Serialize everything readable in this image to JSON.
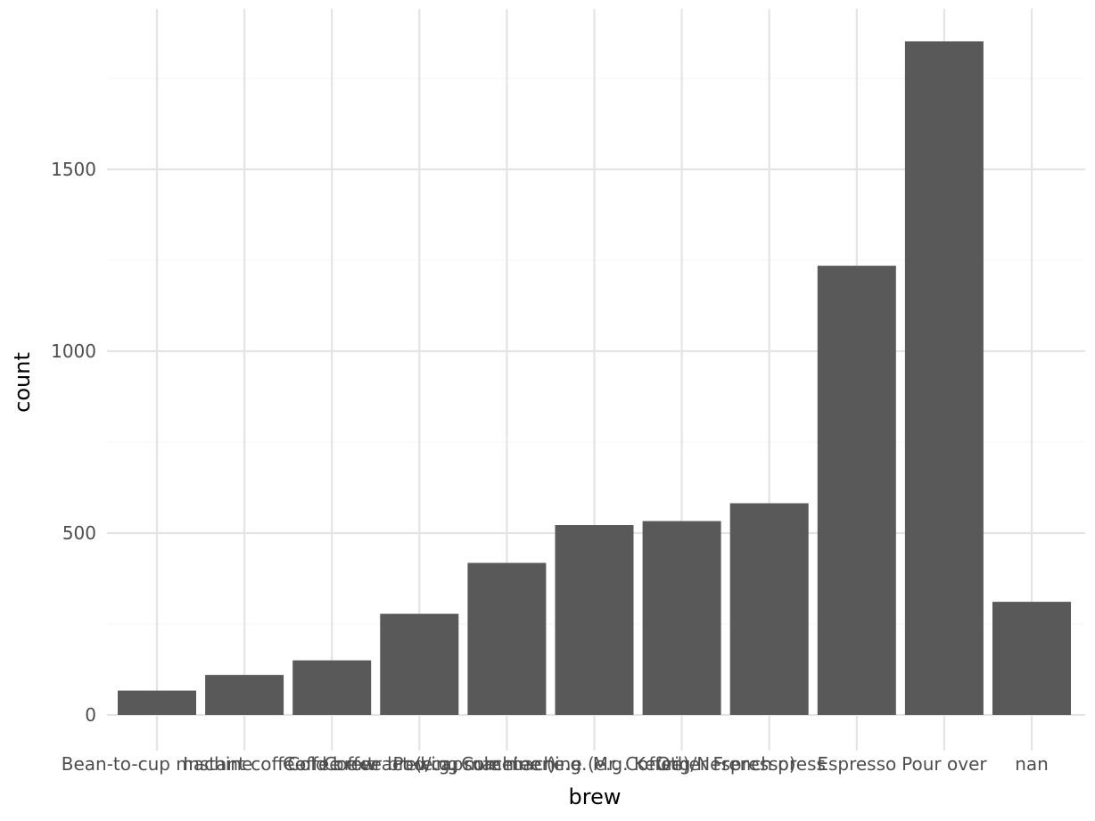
{
  "chart_data": {
    "type": "bar",
    "xlabel": "brew",
    "ylabel": "count",
    "categories": [
      "Bean-to-cup machine",
      "Instant coffee",
      "Cold brew",
      "Coffee extract (e.g. Cometeer)",
      "Coffee brewing machine (e.g. Mr. Coffee)",
      "Pod/capsule machine (e.g. Keurig/Nespresso)",
      "Other",
      "French press",
      "Espresso",
      "Pour over",
      "nan"
    ],
    "values": [
      67,
      110,
      150,
      278,
      418,
      522,
      533,
      582,
      1235,
      1852,
      311
    ],
    "ylim": [
      -70,
      1940
    ],
    "yticks": [
      0,
      500,
      1000,
      1500
    ],
    "grid": true,
    "colors": {
      "bar": "#595959",
      "grid_major": "#e4e4e4",
      "grid_minor": "#f4f4f4"
    }
  }
}
